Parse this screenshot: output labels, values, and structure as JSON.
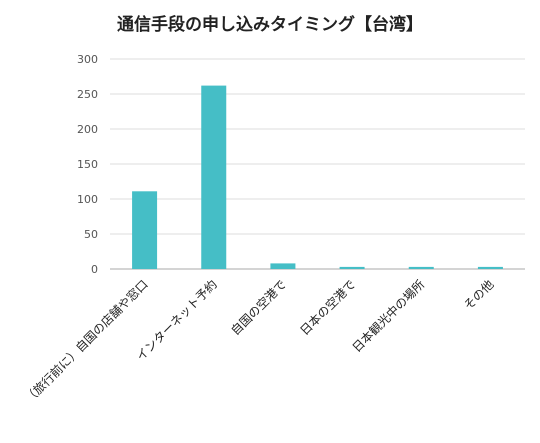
{
  "chart_data": {
    "type": "bar",
    "title": "通信手段の申し込みタイミング【台湾】",
    "categories": [
      "（旅行前に）自国の店舗や窓口",
      "インターネット予約",
      "自国の空港で",
      "日本の空港で",
      "日本観光中の場所",
      "その他"
    ],
    "values": [
      111,
      262,
      8,
      3,
      3,
      3
    ],
    "ylim": [
      0,
      300
    ],
    "yticks": [
      0,
      50,
      100,
      150,
      200,
      250,
      300
    ],
    "grid": true,
    "legend": "none",
    "colors": {
      "bar": "#45bec6",
      "grid": "#dddddd",
      "axis": "#aaaaaa"
    }
  }
}
